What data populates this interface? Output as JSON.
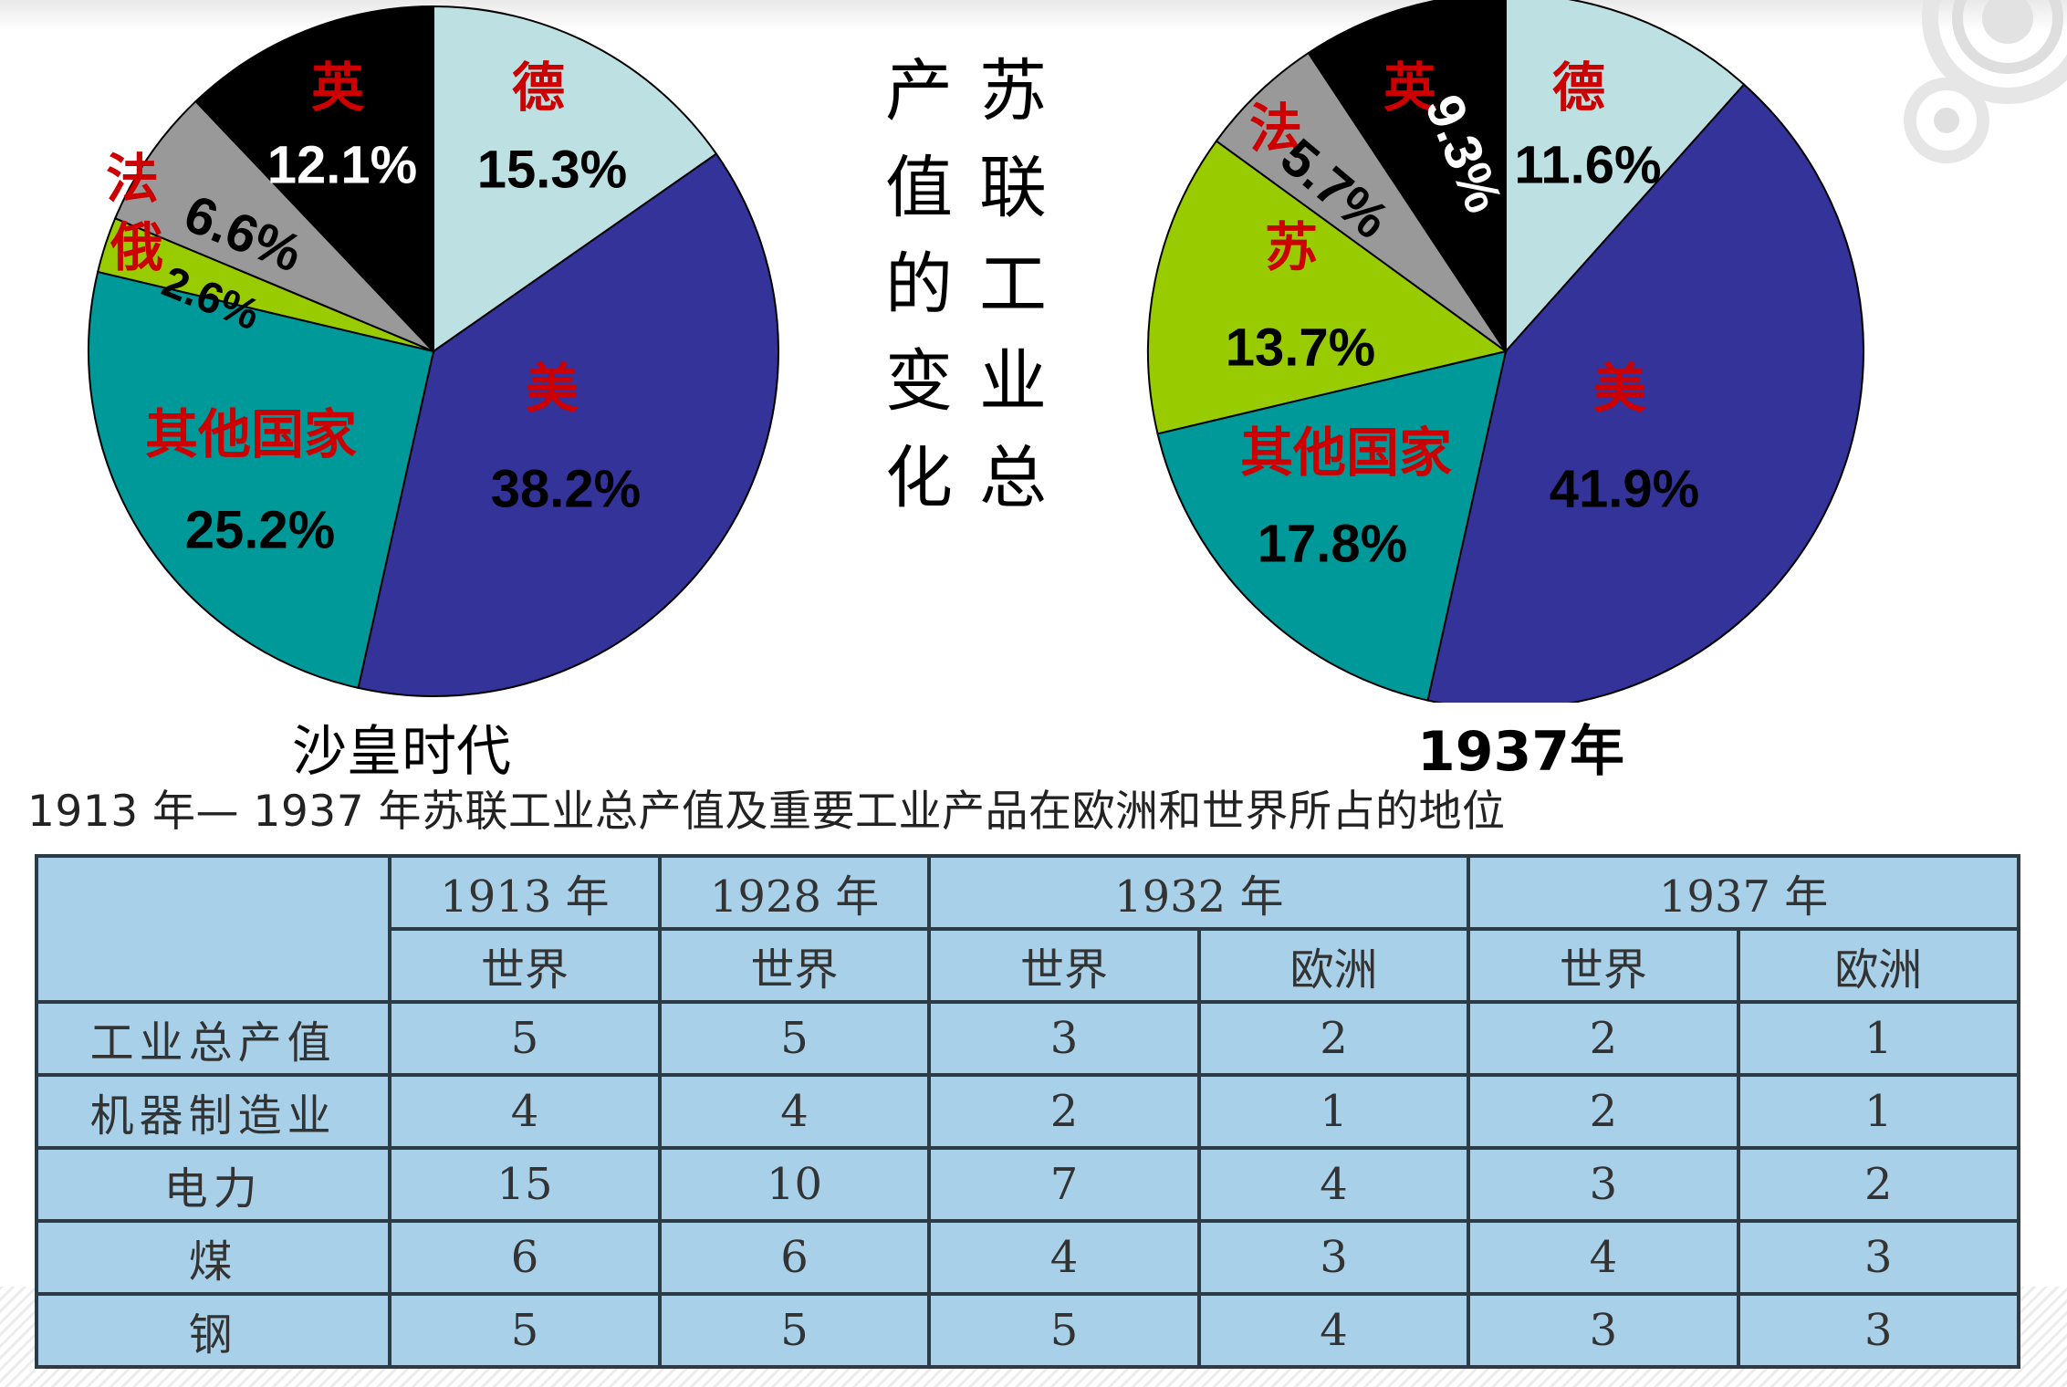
{
  "chart_data": [
    {
      "type": "pie",
      "xlabel": "沙皇时代",
      "slices": [
        {
          "label": "德",
          "value": 15.3,
          "value_label": "15.3%",
          "color": "#bde0e2"
        },
        {
          "label": "美",
          "value": 38.2,
          "value_label": "38.2%",
          "color": "#333399"
        },
        {
          "label": "其他国家",
          "value": 25.2,
          "value_label": "25.2%",
          "color": "#009999"
        },
        {
          "label": "俄",
          "value": 2.6,
          "value_label": "2.6%",
          "color": "#99cc00"
        },
        {
          "label": "法",
          "value": 6.6,
          "value_label": "6.6%",
          "color": "#999999"
        },
        {
          "label": "英",
          "value": 12.1,
          "value_label": "12.1%",
          "color": "#000000"
        }
      ]
    },
    {
      "type": "pie",
      "xlabel": "1937年",
      "slices": [
        {
          "label": "德",
          "value": 11.6,
          "value_label": "11.6%",
          "color": "#bde0e2"
        },
        {
          "label": "美",
          "value": 41.9,
          "value_label": "41.9%",
          "color": "#333399"
        },
        {
          "label": "其他国家",
          "value": 17.8,
          "value_label": "17.8%",
          "color": "#009999"
        },
        {
          "label": "苏",
          "value": 13.7,
          "value_label": "13.7%",
          "color": "#99cc00"
        },
        {
          "label": "法",
          "value": 5.7,
          "value_label": "5.7%",
          "color": "#999999"
        },
        {
          "label": "英",
          "value": 9.3,
          "value_label": "9.3%",
          "color": "#000000"
        }
      ]
    },
    {
      "type": "table",
      "title": "1913 年— 1937 年苏联工业总产值及重要工业产品在欧洲和世界所占的地位",
      "year_headers": [
        "1913 年",
        "1928 年",
        "1932 年",
        "1937 年"
      ],
      "sub_headers": [
        "世界",
        "世界",
        "世界",
        "欧洲",
        "世界",
        "欧洲"
      ],
      "rows": [
        {
          "label": "工业总产值",
          "values": [
            "5",
            "5",
            "3",
            "2",
            "2",
            "1"
          ]
        },
        {
          "label": "机器制造业",
          "values": [
            "4",
            "4",
            "2",
            "1",
            "2",
            "1"
          ]
        },
        {
          "label": "电力",
          "values": [
            "15",
            "10",
            "7",
            "4",
            "3",
            "2"
          ]
        },
        {
          "label": "煤",
          "values": [
            "6",
            "6",
            "4",
            "3",
            "4",
            "3"
          ]
        },
        {
          "label": "钢",
          "values": [
            "5",
            "5",
            "5",
            "4",
            "3",
            "3"
          ]
        }
      ]
    }
  ],
  "side_title": {
    "col1": [
      "产",
      "值",
      "的",
      "变",
      "化"
    ],
    "col2": [
      "苏",
      "联",
      "工",
      "业",
      "总"
    ]
  },
  "colors": {
    "category_label": "#cc0000",
    "value_label_dark": "#000000",
    "value_label_light": "#ffffff",
    "table_bg": "#a8d0e8"
  }
}
